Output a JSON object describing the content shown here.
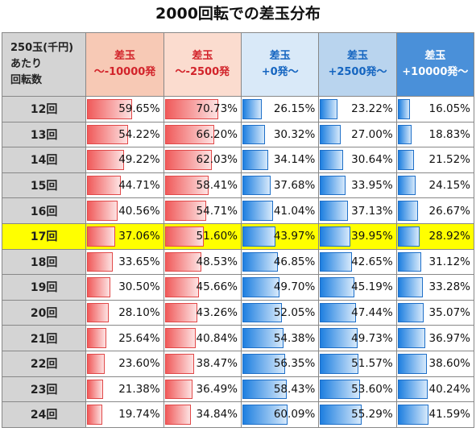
{
  "title": "2000回転での差玉分布",
  "header": {
    "row_head": [
      "250玉(千円)",
      "あたり",
      "回転数"
    ],
    "columns": [
      {
        "line1": "差玉",
        "line2": "～-10000発"
      },
      {
        "line1": "差玉",
        "line2": "～-2500発"
      },
      {
        "line1": "差玉",
        "line2": "+0発～"
      },
      {
        "line1": "差玉",
        "line2": "+2500発～"
      },
      {
        "line1": "差玉",
        "line2": "+10000発～"
      }
    ]
  },
  "highlight_row": "17回",
  "colors": {
    "negative_bar": "#f05a5a",
    "positive_bar": "#1e7fe0",
    "highlight": "#ffff00"
  },
  "chart_data": {
    "type": "table",
    "title": "2000回転での差玉分布",
    "row_label_header": "250玉(千円) あたり 回転数",
    "categories": [
      "12回",
      "13回",
      "14回",
      "15回",
      "16回",
      "17回",
      "18回",
      "19回",
      "20回",
      "21回",
      "22回",
      "23回",
      "24回"
    ],
    "series": [
      {
        "name": "差玉 ～-10000発",
        "values": [
          "59.65%",
          "54.22%",
          "49.22%",
          "44.71%",
          "40.56%",
          "37.06%",
          "33.65%",
          "30.50%",
          "28.10%",
          "25.64%",
          "23.60%",
          "21.38%",
          "19.74%"
        ]
      },
      {
        "name": "差玉 ～-2500発",
        "values": [
          "70.73%",
          "66.20%",
          "62.03%",
          "58.41%",
          "54.71%",
          "51.60%",
          "48.53%",
          "45.66%",
          "43.26%",
          "40.84%",
          "38.47%",
          "36.49%",
          "34.84%"
        ]
      },
      {
        "name": "差玉 +0発～",
        "values": [
          "26.15%",
          "30.32%",
          "34.14%",
          "37.68%",
          "41.04%",
          "43.97%",
          "46.85%",
          "49.70%",
          "52.05%",
          "54.38%",
          "56.35%",
          "58.43%",
          "60.09%"
        ]
      },
      {
        "name": "差玉 +2500発～",
        "values": [
          "23.22%",
          "27.00%",
          "30.64%",
          "33.95%",
          "37.13%",
          "39.95%",
          "42.65%",
          "45.19%",
          "47.44%",
          "49.73%",
          "51.57%",
          "53.60%",
          "55.29%"
        ]
      },
      {
        "name": "差玉 +10000発～",
        "values": [
          "16.05%",
          "18.83%",
          "21.52%",
          "24.15%",
          "26.67%",
          "28.92%",
          "31.12%",
          "33.28%",
          "35.07%",
          "36.97%",
          "38.60%",
          "40.24%",
          "41.59%"
        ]
      }
    ],
    "ylim": [
      0,
      100
    ]
  }
}
